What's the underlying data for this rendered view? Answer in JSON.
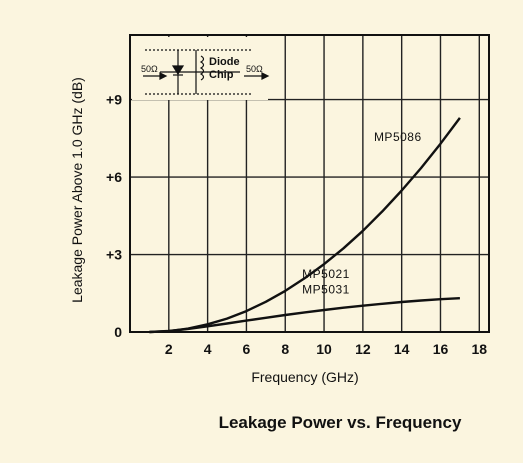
{
  "caption": "Leakage Power vs. Frequency",
  "chart_data": {
    "type": "line",
    "xlabel": "Frequency (GHz)",
    "ylabel": "Leakage Power Above 1.0 GHz (dB)",
    "xlim": [
      0,
      18.5
    ],
    "ylim": [
      0,
      11.5
    ],
    "x_ticks": [
      2,
      4,
      6,
      8,
      10,
      12,
      14,
      16,
      18
    ],
    "y_ticks": [
      0,
      3,
      6,
      9
    ],
    "y_tick_labels": [
      "0",
      "+3",
      "+6",
      "+9"
    ],
    "grid": true,
    "series": [
      {
        "name": "MP5086",
        "x": [
          1,
          2,
          3,
          4,
          5,
          6,
          7,
          8,
          9,
          10,
          11,
          12,
          13,
          14,
          15,
          16,
          17
        ],
        "y": [
          0.0,
          0.03,
          0.13,
          0.3,
          0.52,
          0.81,
          1.17,
          1.59,
          2.08,
          2.63,
          3.24,
          3.92,
          4.67,
          5.48,
          6.35,
          7.29,
          8.29
        ]
      },
      {
        "name": "MP5021",
        "x": [
          1,
          2,
          3,
          4,
          5,
          6,
          7,
          8,
          9,
          10,
          11,
          12,
          13,
          14,
          15,
          16,
          17
        ],
        "y": [
          0.0,
          0.04,
          0.12,
          0.22,
          0.33,
          0.44,
          0.55,
          0.66,
          0.76,
          0.85,
          0.94,
          1.02,
          1.09,
          1.16,
          1.22,
          1.27,
          1.31
        ]
      }
    ],
    "series_labels": [
      {
        "text": "MP5086",
        "at": [
          13.8,
          7.4
        ]
      },
      {
        "text": "MP5021",
        "at": [
          10.1,
          2.1
        ]
      },
      {
        "text": "MP5031",
        "at": [
          10.1,
          1.5
        ]
      }
    ],
    "inset": {
      "left_impedance": "50Ω",
      "right_impedance": "50Ω",
      "label_line1": "Diode",
      "label_line2": "Chip"
    }
  }
}
